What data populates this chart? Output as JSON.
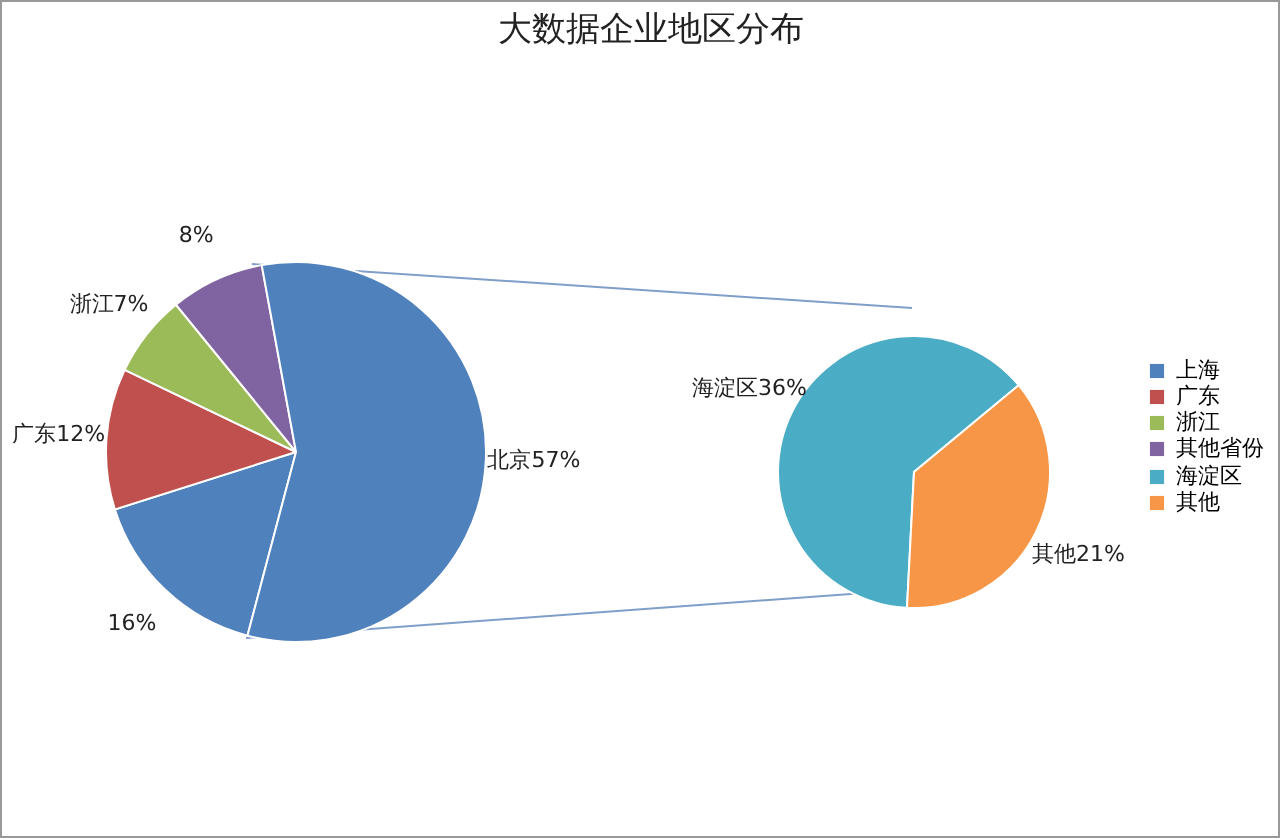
{
  "chart_data": [
    {
      "type": "pie",
      "title": "大数据企业地区分布",
      "categories": [
        "上海",
        "广东",
        "浙江",
        "其他省份",
        null
      ],
      "values": [
        16,
        12,
        7,
        8,
        57
      ],
      "colors": [
        "#4f81bd",
        "#c0504d",
        "#9bbb59",
        "#8064a2",
        "#4f81bd"
      ],
      "value_labels": [
        "16%",
        "广东12%",
        "浙江7%",
        "8%",
        "北京57%"
      ],
      "legend": "right"
    },
    {
      "type": "pie",
      "categories": [
        "海淀区",
        "其他"
      ],
      "values": [
        36,
        21
      ],
      "colors": [
        "#4bacc6",
        "#f79646"
      ],
      "value_labels": [
        "海淀区36%",
        "其他21%"
      ],
      "legend": "right"
    }
  ]
}
